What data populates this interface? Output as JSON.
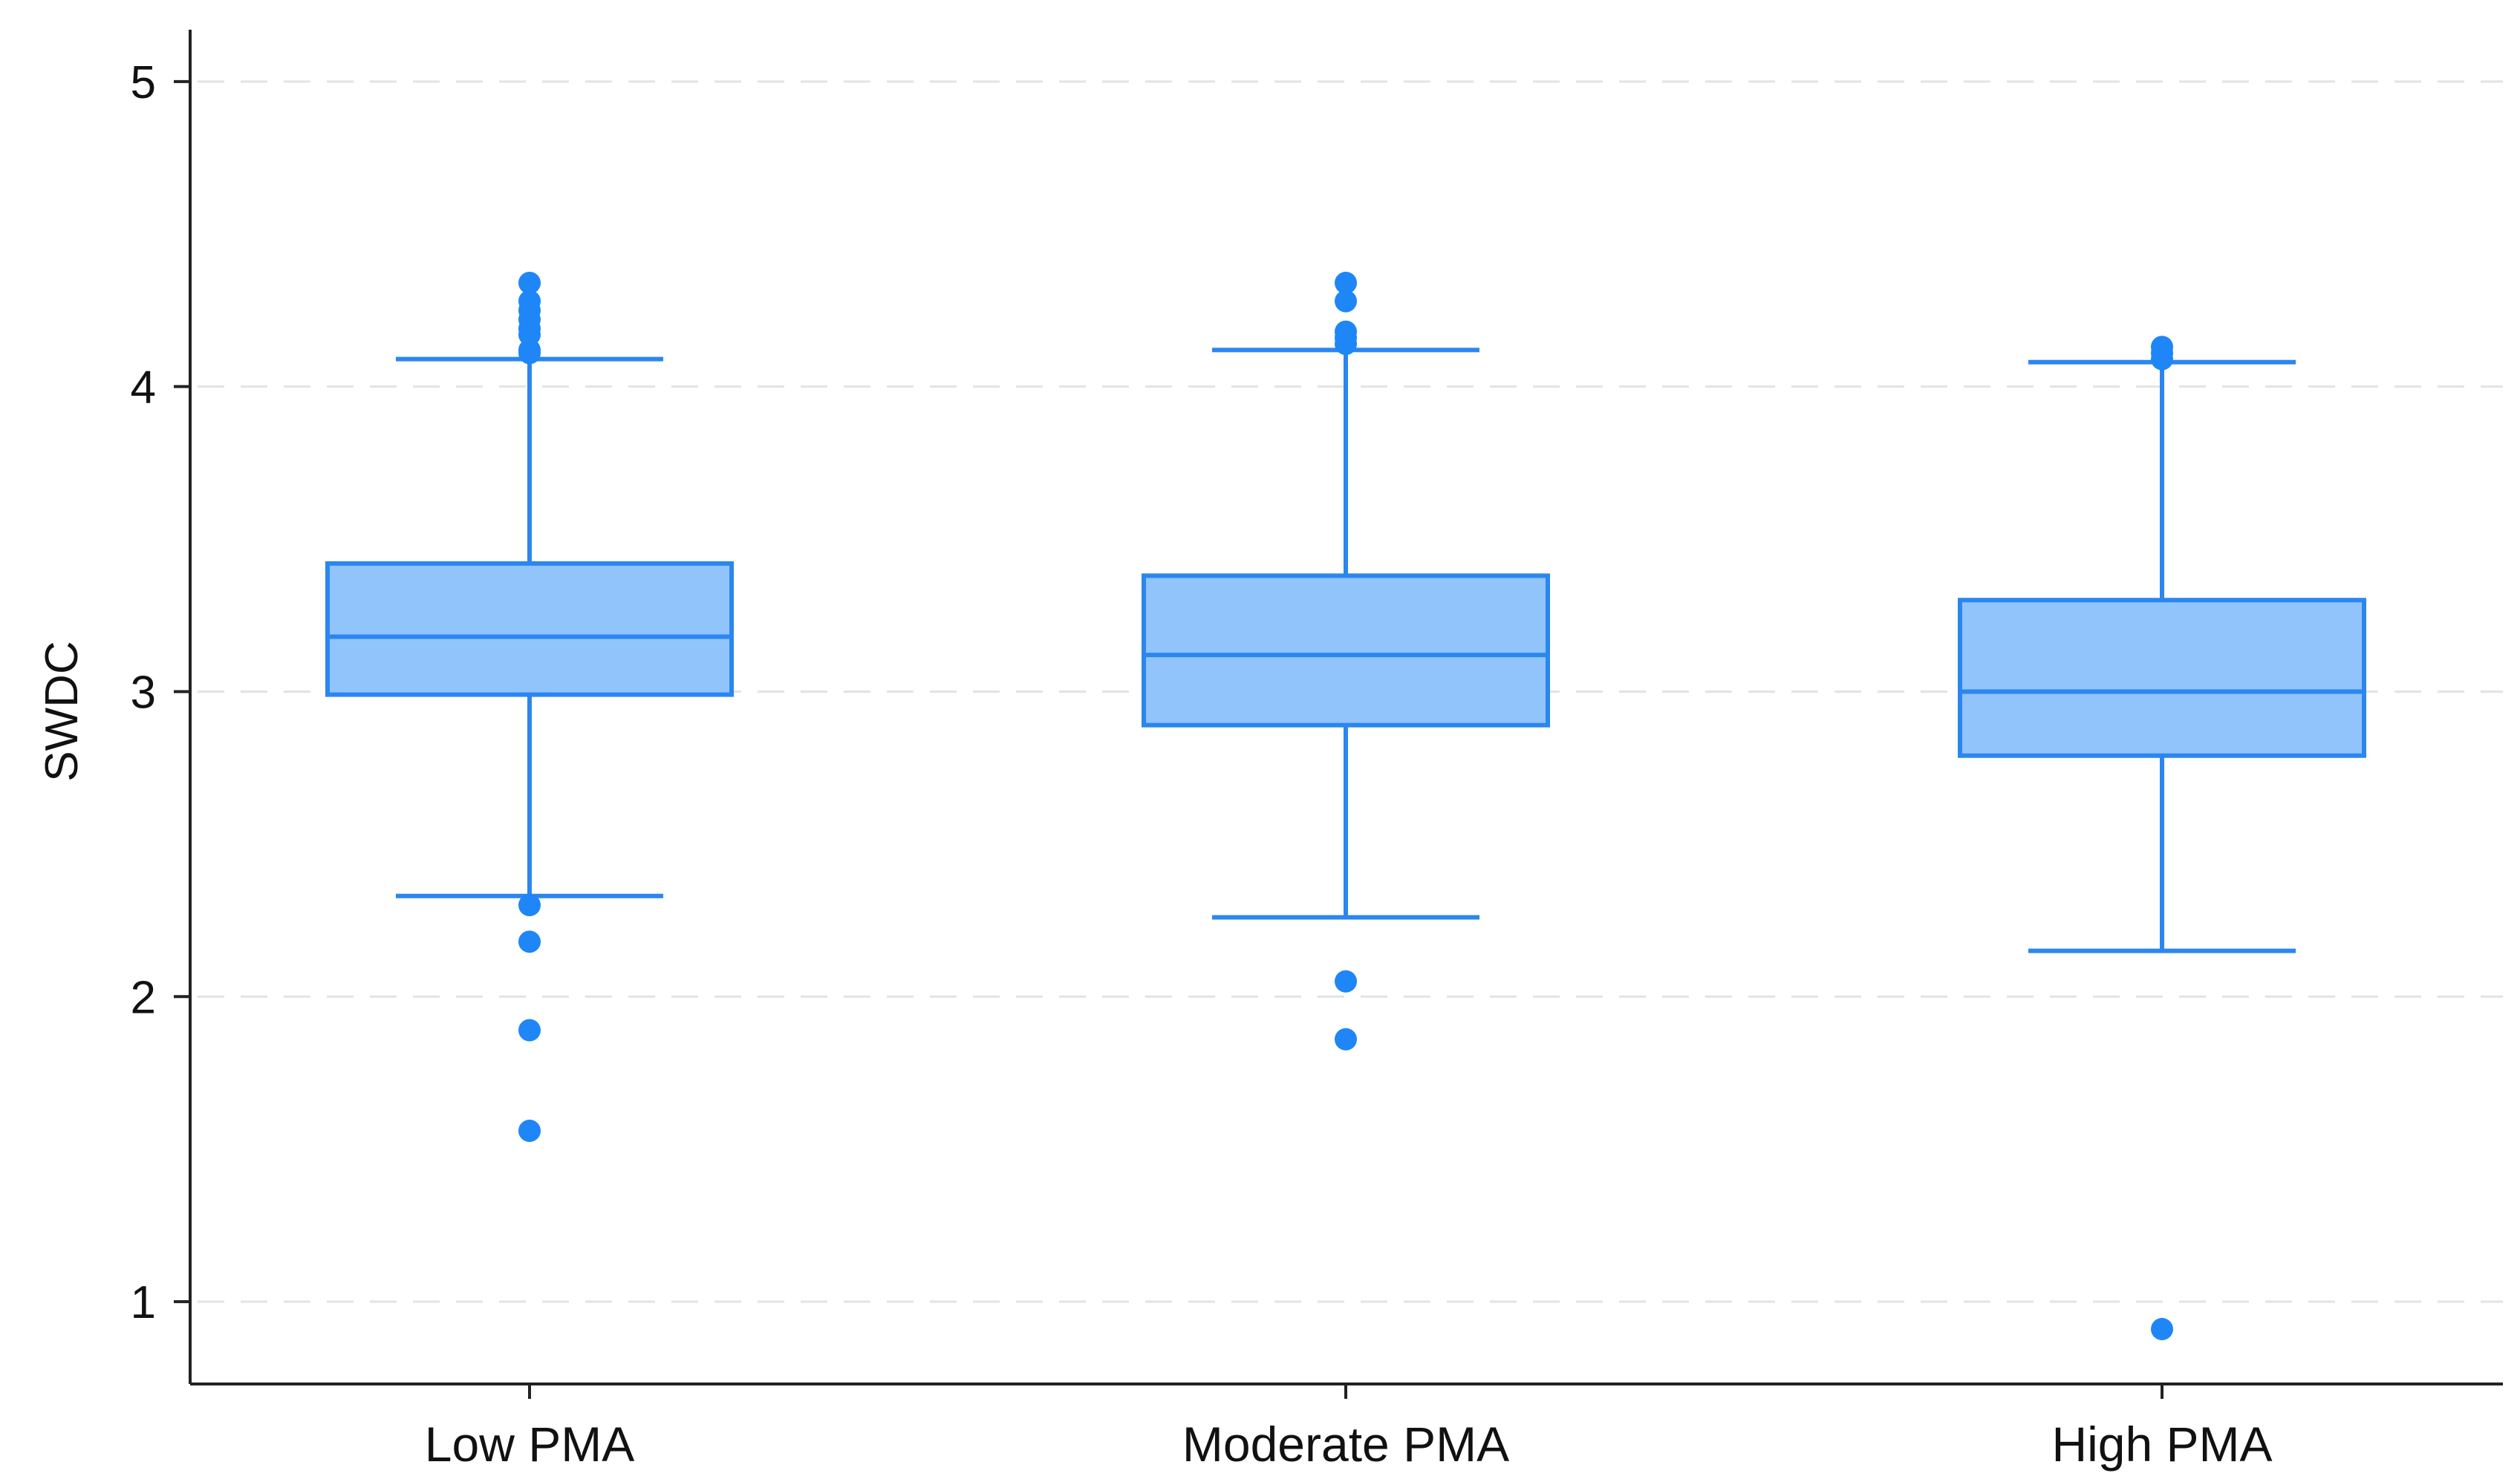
{
  "chart_data": {
    "type": "boxplot",
    "title": "",
    "xlabel": "",
    "ylabel": "SWDC",
    "ylim": [
      0.73,
      5.17
    ],
    "yticks": [
      1,
      2,
      3,
      4,
      5
    ],
    "ytick_labels": [
      "1",
      "2",
      "3",
      "4",
      "5"
    ],
    "grid": "horizontal dashed",
    "colors": {
      "box_fill": "#90c4fb",
      "box_stroke": "#2b86f0",
      "outlier": "#1e86f7",
      "grid": "#e3e3e3",
      "axis": "#222222"
    },
    "categories": [
      "Low PMA",
      "Moderate PMA",
      "High PMA"
    ],
    "boxes": [
      {
        "name": "Low PMA",
        "whisker_low": 2.33,
        "q1": 2.99,
        "median": 3.18,
        "q3": 3.42,
        "whisker_high": 4.09,
        "outliers": [
          4.34,
          4.28,
          4.25,
          4.22,
          4.19,
          4.17,
          4.12,
          4.11,
          2.3,
          2.18,
          1.89,
          1.56
        ]
      },
      {
        "name": "Moderate PMA",
        "whisker_low": 2.26,
        "q1": 2.89,
        "median": 3.12,
        "q3": 3.38,
        "whisker_high": 4.12,
        "outliers": [
          4.34,
          4.28,
          4.18,
          4.16,
          4.14,
          2.05,
          1.86
        ]
      },
      {
        "name": "High PMA",
        "whisker_low": 2.15,
        "q1": 2.79,
        "median": 3.0,
        "q3": 3.3,
        "whisker_high": 4.08,
        "outliers": [
          4.13,
          4.11,
          4.09,
          0.91
        ]
      }
    ]
  }
}
